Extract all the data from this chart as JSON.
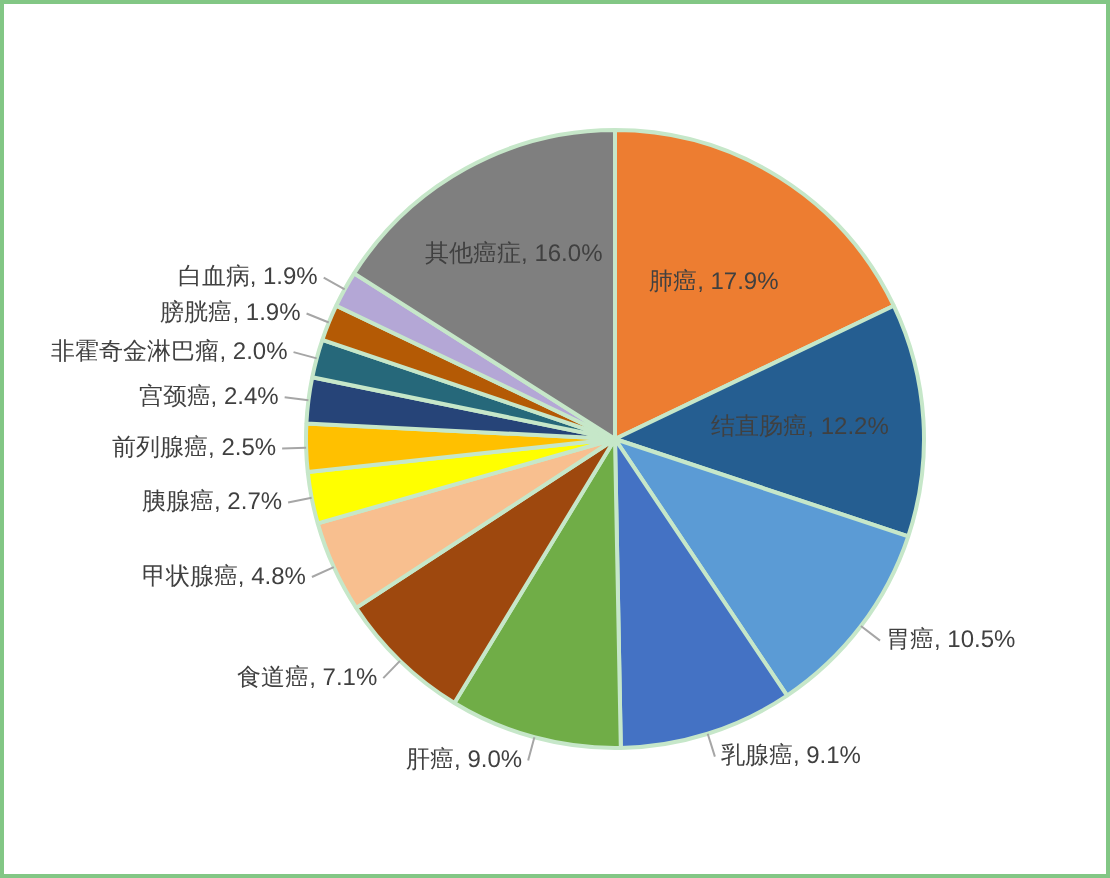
{
  "chart_data": {
    "type": "pie",
    "categories": [
      "肺癌",
      "结直肠癌",
      "胃癌",
      "乳腺癌",
      "肝癌",
      "食道癌",
      "甲状腺癌",
      "胰腺癌",
      "前列腺癌",
      "宫颈癌",
      "非霍奇金淋巴瘤",
      "膀胱癌",
      "白血病",
      "其他癌症"
    ],
    "values": [
      17.9,
      12.2,
      10.5,
      9.1,
      9.0,
      7.1,
      4.8,
      2.7,
      2.5,
      2.4,
      2.0,
      1.9,
      1.9,
      16.0
    ],
    "value_labels": [
      "17.9%",
      "12.2%",
      "10.5%",
      "9.1%",
      "9.0%",
      "7.1%",
      "4.8%",
      "2.7%",
      "2.5%",
      "2.4%",
      "2.0%",
      "1.9%",
      "1.9%",
      "16.0%"
    ],
    "colors": [
      "#ed7d31",
      "#255e91",
      "#5b9bd5",
      "#4472c4",
      "#70ad47",
      "#9e480e",
      "#f8bf8f",
      "#ffff00",
      "#ffc000",
      "#264478",
      "#26687a",
      "#b45a05",
      "#b4a7d6",
      "#7f7f7f"
    ],
    "legend": false
  }
}
